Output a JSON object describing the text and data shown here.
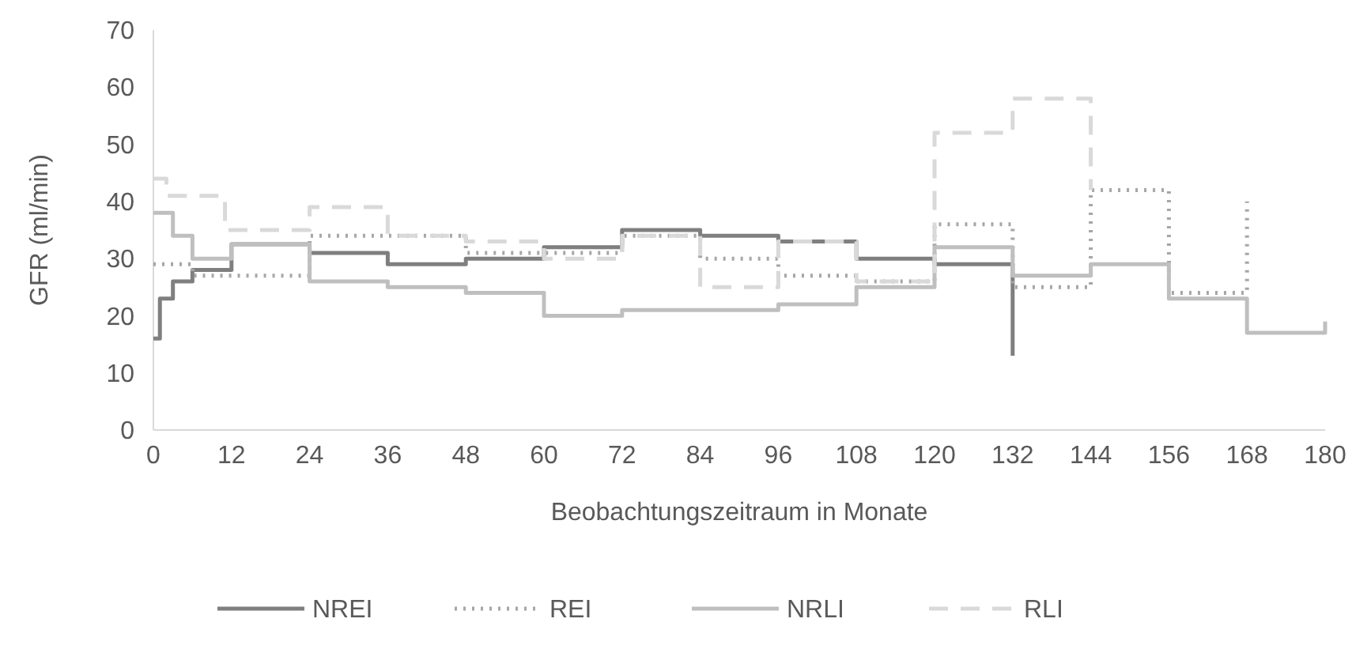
{
  "chart_data": {
    "type": "step",
    "xlabel": "Beobachtungszeitraum in Monate",
    "ylabel": "GFR (ml/min)",
    "xlim": [
      0,
      180
    ],
    "xticks": [
      0,
      12,
      24,
      36,
      48,
      60,
      72,
      84,
      96,
      108,
      120,
      132,
      144,
      156,
      168,
      180
    ],
    "ylim": [
      0,
      70
    ],
    "yticks": [
      0,
      10,
      20,
      30,
      40,
      50,
      60,
      70
    ],
    "grid": false,
    "legend": "bottom",
    "series": [
      {
        "name": "NREI",
        "color": "#7f7f7f",
        "line_style": "solid",
        "x": [
          0,
          1,
          3,
          6,
          12,
          24,
          36,
          48,
          60,
          72,
          84,
          96,
          108,
          120,
          132
        ],
        "values": [
          16,
          23,
          26,
          28,
          32.5,
          31,
          29,
          30,
          32,
          35,
          34,
          33,
          30,
          29,
          13
        ]
      },
      {
        "name": "REI",
        "color": "#a6a6a6",
        "line_style": "dotted",
        "x": [
          0,
          6,
          24,
          48,
          60,
          72,
          84,
          96,
          108,
          120,
          132,
          144,
          156,
          168
        ],
        "values": [
          29,
          27,
          34,
          31,
          31,
          34,
          30,
          27,
          26,
          36,
          25,
          42,
          24,
          40
        ]
      },
      {
        "name": "NRLI",
        "color": "#bfbfbf",
        "line_style": "solid",
        "x": [
          0,
          3,
          6,
          12,
          24,
          36,
          48,
          60,
          72,
          96,
          108,
          120,
          132,
          144,
          156,
          168,
          180
        ],
        "values": [
          38,
          34,
          30,
          32.5,
          26,
          25,
          24,
          20,
          21,
          22,
          25,
          32,
          27,
          29,
          23,
          17,
          19
        ]
      },
      {
        "name": "RLI",
        "color": "#d9d9d9",
        "line_style": "dashed",
        "x": [
          0,
          2,
          11,
          24,
          36,
          48,
          60,
          72,
          84,
          96,
          108,
          120,
          132,
          144
        ],
        "values": [
          44,
          41,
          35,
          39,
          34,
          33,
          30,
          34,
          25,
          33,
          26,
          52,
          58,
          42
        ]
      }
    ]
  }
}
